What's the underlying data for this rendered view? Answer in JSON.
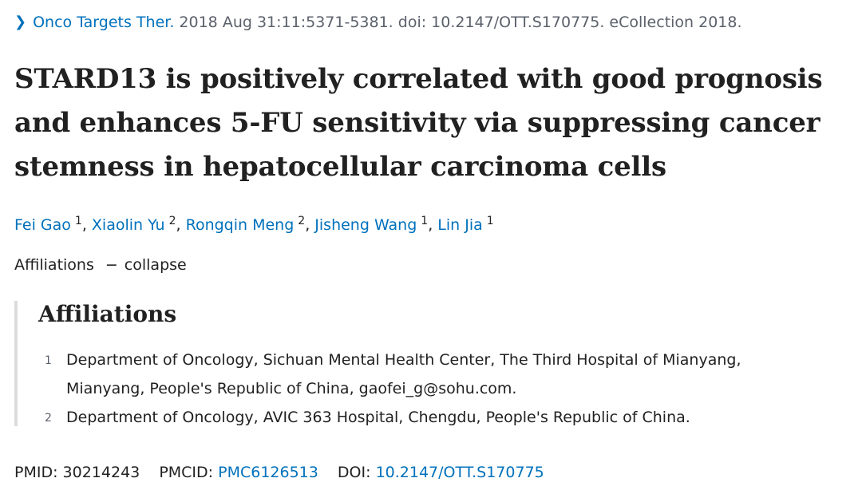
{
  "citation": {
    "journal": "Onco Targets Ther.",
    "details": "2018 Aug 31:11:5371-5381. doi: 10.2147/OTT.S170775. eCollection 2018."
  },
  "title": "STARD13 is positively correlated with good prognosis and enhances 5-FU sensitivity via suppressing cancer stemness in hepatocellular carcinoma cells",
  "authors": [
    {
      "name": "Fei Gao",
      "aff": "1"
    },
    {
      "name": "Xiaolin Yu",
      "aff": "2"
    },
    {
      "name": "Rongqin Meng",
      "aff": "2"
    },
    {
      "name": "Jisheng Wang",
      "aff": "1"
    },
    {
      "name": "Lin Jia",
      "aff": "1"
    }
  ],
  "author_separator": ",",
  "affiliations_toggle": {
    "label": "Affiliations",
    "minus": "−",
    "action": "collapse"
  },
  "affiliations": {
    "heading": "Affiliations",
    "items": [
      {
        "num": "1",
        "text": "Department of Oncology, Sichuan Mental Health Center, The Third Hospital of Mianyang, Mianyang, People's Republic of China, gaofei_g@sohu.com."
      },
      {
        "num": "2",
        "text": "Department of Oncology, AVIC 363 Hospital, Chengdu, People's Republic of China."
      }
    ]
  },
  "identifiers": {
    "pmid_label": "PMID:",
    "pmid": "30214243",
    "pmcid_label": "PMCID:",
    "pmcid": "PMC6126513",
    "doi_label": "DOI:",
    "doi": "10.2147/OTT.S170775"
  },
  "colors": {
    "link": "#0071bc",
    "text": "#212121",
    "muted": "#5b616b",
    "border": "#dcdcdc"
  },
  "icons": {
    "citation_chevron": "chevron-right-icon"
  }
}
